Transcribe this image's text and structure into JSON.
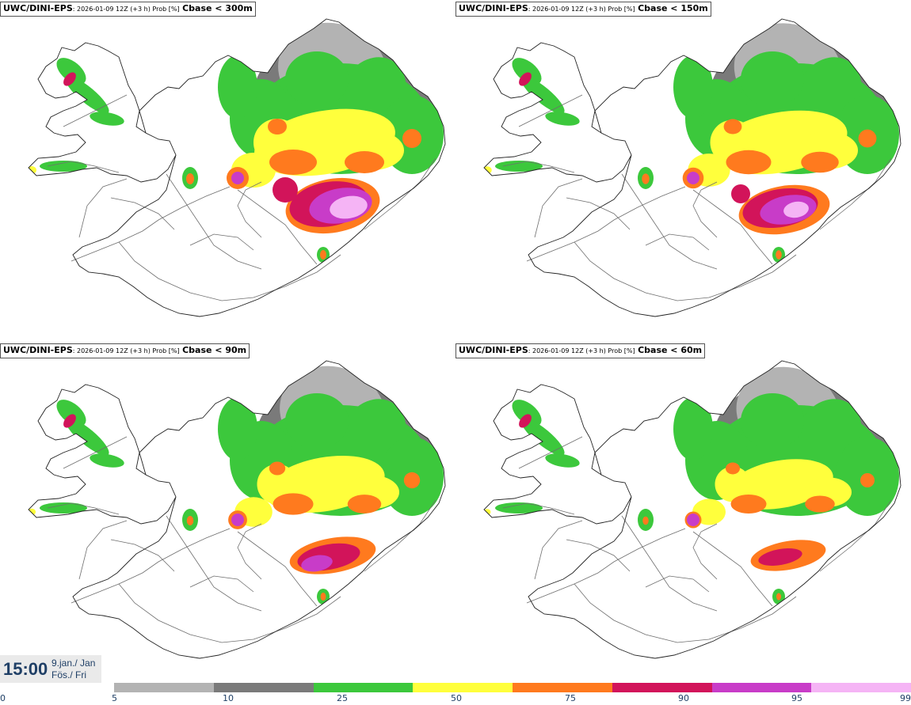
{
  "model": "UWC/DINI-EPS",
  "run_info": ": 2026-01-09 12Z (+3 h) Prob [%]",
  "panels": [
    {
      "variable": "Cbase < 300m"
    },
    {
      "variable": "Cbase < 150m"
    },
    {
      "variable": "Cbase < 90m"
    },
    {
      "variable": "Cbase < 60m"
    }
  ],
  "valid_time": {
    "time": "15:00",
    "date_line1": "9.jan./ Jan",
    "date_line2": "Fös./ Fri"
  },
  "legend": {
    "ticks": [
      "0",
      "5",
      "10",
      "25",
      "50",
      "75",
      "90",
      "95",
      "99"
    ],
    "colors": [
      "#b3b3b3",
      "#7a7a7a",
      "#3cc83c",
      "#ffff3c",
      "#ff7a1e",
      "#d2145a",
      "#c83cc8",
      "#f5b4f5"
    ]
  }
}
